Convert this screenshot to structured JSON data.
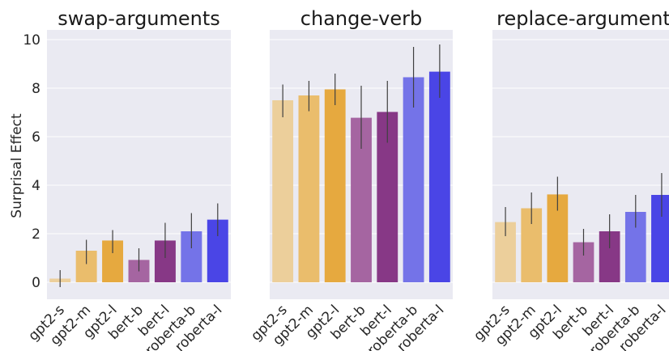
{
  "chart_data": {
    "type": "bar",
    "ylabel": "Surprisal Effect",
    "ylim": [
      -0.7,
      10.4
    ],
    "yticks": [
      0,
      2,
      4,
      6,
      8,
      10
    ],
    "grid": true,
    "categories": [
      "gpt2-s",
      "gpt2-m",
      "gpt2-l",
      "bert-b",
      "bert-l",
      "roberta-b",
      "roberta-l"
    ],
    "colors": [
      "#eccf9b",
      "#eabd6c",
      "#e6a93f",
      "#a565a1",
      "#873886",
      "#7473e8",
      "#4a45e6"
    ],
    "panels": [
      {
        "title": "swap-arguments",
        "values": [
          0.15,
          1.3,
          1.72,
          0.92,
          1.72,
          2.1,
          2.58
        ],
        "err_low": [
          -0.2,
          0.75,
          1.2,
          0.45,
          1.0,
          1.4,
          1.9
        ],
        "err_high": [
          0.5,
          1.75,
          2.15,
          1.4,
          2.45,
          2.85,
          3.25
        ]
      },
      {
        "title": "change-verb",
        "values": [
          7.5,
          7.7,
          7.95,
          6.78,
          7.02,
          8.45,
          8.68
        ],
        "err_low": [
          6.8,
          7.05,
          7.3,
          5.5,
          5.75,
          7.2,
          7.6
        ],
        "err_high": [
          8.15,
          8.3,
          8.6,
          8.1,
          8.3,
          9.7,
          9.8
        ]
      },
      {
        "title": "replace-argument",
        "values": [
          2.48,
          3.05,
          3.62,
          1.65,
          2.1,
          2.9,
          3.6
        ],
        "err_low": [
          1.9,
          2.4,
          2.95,
          1.1,
          1.4,
          2.25,
          2.7
        ],
        "err_high": [
          3.1,
          3.7,
          4.35,
          2.2,
          2.8,
          3.6,
          4.5
        ]
      }
    ]
  }
}
